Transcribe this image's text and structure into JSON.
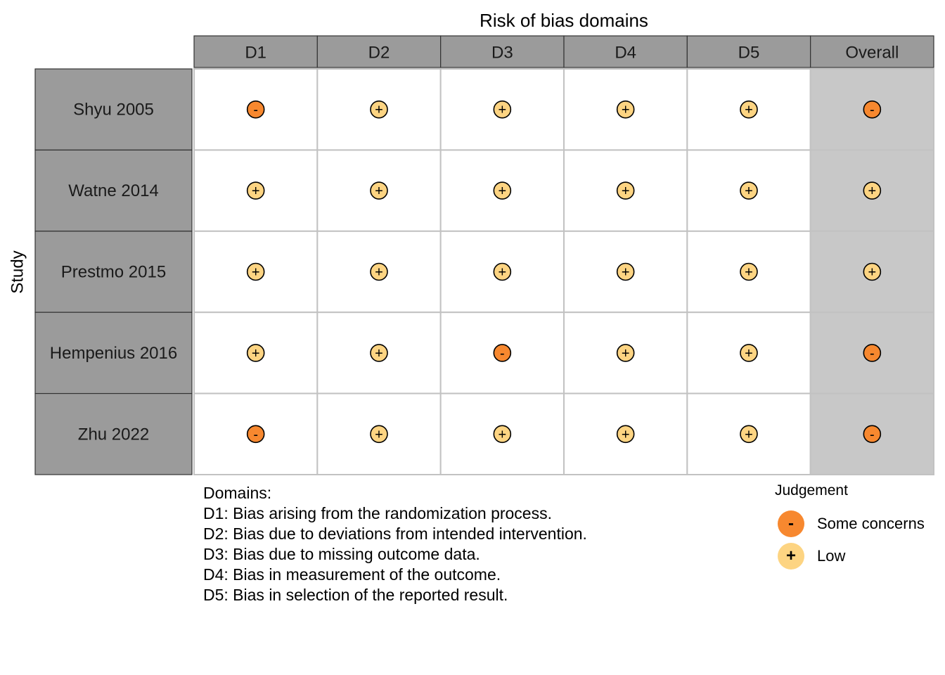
{
  "chart_data": {
    "type": "table",
    "title": "Risk of bias domains",
    "ylabel": "Study",
    "columns": [
      "D1",
      "D2",
      "D3",
      "D4",
      "D5",
      "Overall"
    ],
    "studies": [
      "Shyu 2005",
      "Watne 2014",
      "Prestmo 2015",
      "Hempenius 2016",
      "Zhu 2022"
    ],
    "judgements": [
      [
        "-",
        "+",
        "+",
        "+",
        "+",
        "-"
      ],
      [
        "+",
        "+",
        "+",
        "+",
        "+",
        "+"
      ],
      [
        "+",
        "+",
        "+",
        "+",
        "+",
        "+"
      ],
      [
        "+",
        "+",
        "-",
        "+",
        "+",
        "-"
      ],
      [
        "-",
        "+",
        "+",
        "+",
        "+",
        "-"
      ]
    ],
    "domains_heading": "Domains:",
    "domain_descriptions": [
      "D1: Bias arising from the randomization process.",
      "D2: Bias due to deviations from intended intervention.",
      "D3: Bias due to missing outcome data.",
      "D4: Bias in measurement of the outcome.",
      "D5: Bias in selection of the reported result."
    ],
    "legend": {
      "title": "Judgement",
      "position": "bottom-right",
      "items": [
        {
          "symbol": "-",
          "label": "Some concerns",
          "color": "#F7882F"
        },
        {
          "symbol": "+",
          "label": "Low",
          "color": "#FDD482"
        }
      ]
    }
  },
  "colors": {
    "some_concerns": "#F7882F",
    "low": "#FDD482",
    "header_fill": "#9B9B9B",
    "study_fill": "#9B9B9B",
    "overall_fill": "#C8C8C8",
    "cell_fill": "#FFFFFF",
    "grid": "#C2C2C2"
  }
}
